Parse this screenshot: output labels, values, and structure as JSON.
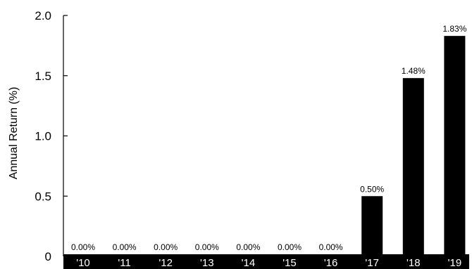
{
  "chart_data": {
    "type": "bar",
    "categories": [
      "'10",
      "'11",
      "'12",
      "'13",
      "'14",
      "'15",
      "'16",
      "'17",
      "'18",
      "'19"
    ],
    "values": [
      0.0,
      0.0,
      0.0,
      0.0,
      0.0,
      0.0,
      0.0,
      0.5,
      1.48,
      1.83
    ],
    "value_labels": [
      "0.00%",
      "0.00%",
      "0.00%",
      "0.00%",
      "0.00%",
      "0.00%",
      "0.00%",
      "0.50%",
      "1.48%",
      "1.83%"
    ],
    "title": "",
    "xlabel": "",
    "ylabel": "Annual Return (%)",
    "ylim": [
      0,
      2.0
    ],
    "yticks": [
      0,
      0.5,
      1.0,
      1.5,
      2.0
    ],
    "ytick_labels": [
      "0",
      "0.5",
      "1.0",
      "1.5",
      "2.0"
    ],
    "bar_color": "#000000",
    "grid": false,
    "legend": "none"
  }
}
